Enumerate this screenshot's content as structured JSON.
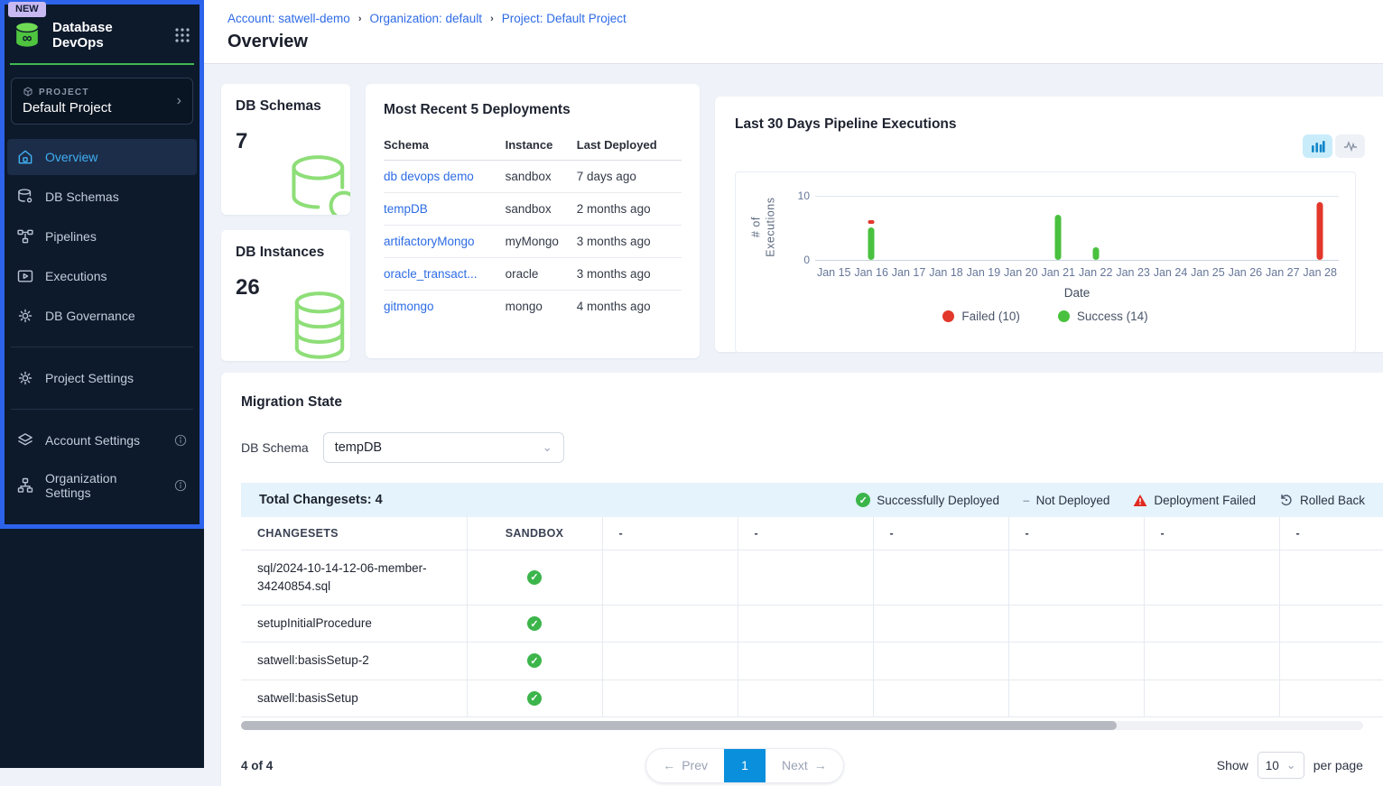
{
  "colors": {
    "accent_blue": "#2e6be6",
    "active_nav_blue": "#41aef2",
    "sidebar_bg": "#0d1a2c",
    "highlight_frame_blue": "#2c63ea",
    "success_green": "#3cb54b",
    "failed_red": "#e02b20",
    "chart_green": "#49c13e",
    "chart_red": "#e2372b",
    "table_header_blue": "#e4f3fc",
    "pager_blue": "#0a8fdd",
    "brand_green": "#4ec43f"
  },
  "sidebar": {
    "badge": "NEW",
    "app_title": "Database DevOps",
    "project_label": "PROJECT",
    "project_name": "Default Project",
    "nav": [
      {
        "label": "Overview",
        "icon": "home-icon",
        "active": true
      },
      {
        "label": "DB Schemas",
        "icon": "database-icon",
        "active": false
      },
      {
        "label": "Pipelines",
        "icon": "pipeline-icon",
        "active": false
      },
      {
        "label": "Executions",
        "icon": "executions-icon",
        "active": false
      },
      {
        "label": "DB Governance",
        "icon": "gear-icon",
        "active": false
      }
    ],
    "nav_secondary": [
      {
        "label": "Project Settings",
        "icon": "gear-icon",
        "active": false
      }
    ],
    "nav_tertiary": [
      {
        "label": "Account Settings",
        "icon": "layers-icon",
        "info": true,
        "active": false
      },
      {
        "label": "Organization Settings",
        "icon": "org-icon",
        "info": true,
        "active": false
      }
    ]
  },
  "breadcrumb": [
    "Account: satwell-demo",
    "Organization: default",
    "Project: Default Project"
  ],
  "page_title": "Overview",
  "stats": [
    {
      "title": "DB Schemas",
      "value": "7",
      "icon": "database-single-icon"
    },
    {
      "title": "DB Instances",
      "value": "26",
      "icon": "database-stack-icon"
    }
  ],
  "deployments": {
    "title": "Most Recent 5 Deployments",
    "columns": [
      "Schema",
      "Instance",
      "Last Deployed"
    ],
    "rows": [
      {
        "schema": "db devops demo",
        "instance": "sandbox",
        "last_deployed": "7 days ago"
      },
      {
        "schema": "tempDB",
        "instance": "sandbox",
        "last_deployed": "2 months ago"
      },
      {
        "schema": "artifactoryMongo",
        "instance": "myMongo",
        "last_deployed": "3 months ago"
      },
      {
        "schema": "oracle_transact...",
        "instance": "oracle",
        "last_deployed": "3 months ago"
      },
      {
        "schema": "gitmongo",
        "instance": "mongo",
        "last_deployed": "4 months ago"
      }
    ]
  },
  "chart_data": {
    "type": "bar",
    "title": "Last 30 Days Pipeline Executions",
    "categories": [
      "Jan 15",
      "Jan 16",
      "Jan 17",
      "Jan 18",
      "Jan 19",
      "Jan 20",
      "Jan 21",
      "Jan 22",
      "Jan 23",
      "Jan 24",
      "Jan 25",
      "Jan 26",
      "Jan 27",
      "Jan 28"
    ],
    "series": [
      {
        "name": "Success",
        "color": "#49c13e",
        "total": 14,
        "values": [
          0,
          5,
          0,
          0,
          0,
          0,
          7,
          2,
          0,
          0,
          0,
          0,
          0,
          0
        ]
      },
      {
        "name": "Failed",
        "color": "#e2372b",
        "total": 10,
        "values": [
          0,
          1,
          0,
          0,
          0,
          0,
          0,
          0,
          0,
          0,
          0,
          0,
          0,
          9
        ]
      }
    ],
    "stacked": true,
    "xlabel": "Date",
    "ylabel": "# of\nExecutions",
    "ylim": [
      0,
      10
    ],
    "yticks": [
      0,
      10
    ],
    "grid": "horizontal-at-10",
    "legend_position": "bottom",
    "legend": [
      "Failed (10)",
      "Success (14)"
    ],
    "legend_colors": [
      "#e2372b",
      "#49c13e"
    ]
  },
  "migration": {
    "title": "Migration State",
    "schema_label": "DB Schema",
    "schema_selected": "tempDB",
    "total_label": "Total Changesets: 4",
    "status_legend": [
      {
        "label": "Successfully Deployed",
        "icon": "success-check-icon"
      },
      {
        "label": "Not Deployed",
        "icon": "dash-icon"
      },
      {
        "label": "Deployment Failed",
        "icon": "failed-triangle-icon"
      },
      {
        "label": "Rolled Back",
        "icon": "rolled-back-icon"
      }
    ],
    "table": {
      "columns": [
        "CHANGESETS",
        "SANDBOX",
        "-",
        "-",
        "-",
        "-",
        "-",
        "-"
      ],
      "rows": [
        {
          "changeset": "sql/2024-10-14-12-06-member-34240854.sql",
          "sandbox": "success"
        },
        {
          "changeset": "setupInitialProcedure",
          "sandbox": "success"
        },
        {
          "changeset": "satwell:basisSetup-2",
          "sandbox": "success"
        },
        {
          "changeset": "satwell:basisSetup",
          "sandbox": "success"
        }
      ]
    }
  },
  "pagination": {
    "summary": "4 of 4",
    "prev_label": "Prev",
    "current_page": "1",
    "next_label": "Next",
    "show_label": "Show",
    "per_page_value": "10",
    "per_page_label": "per page"
  }
}
